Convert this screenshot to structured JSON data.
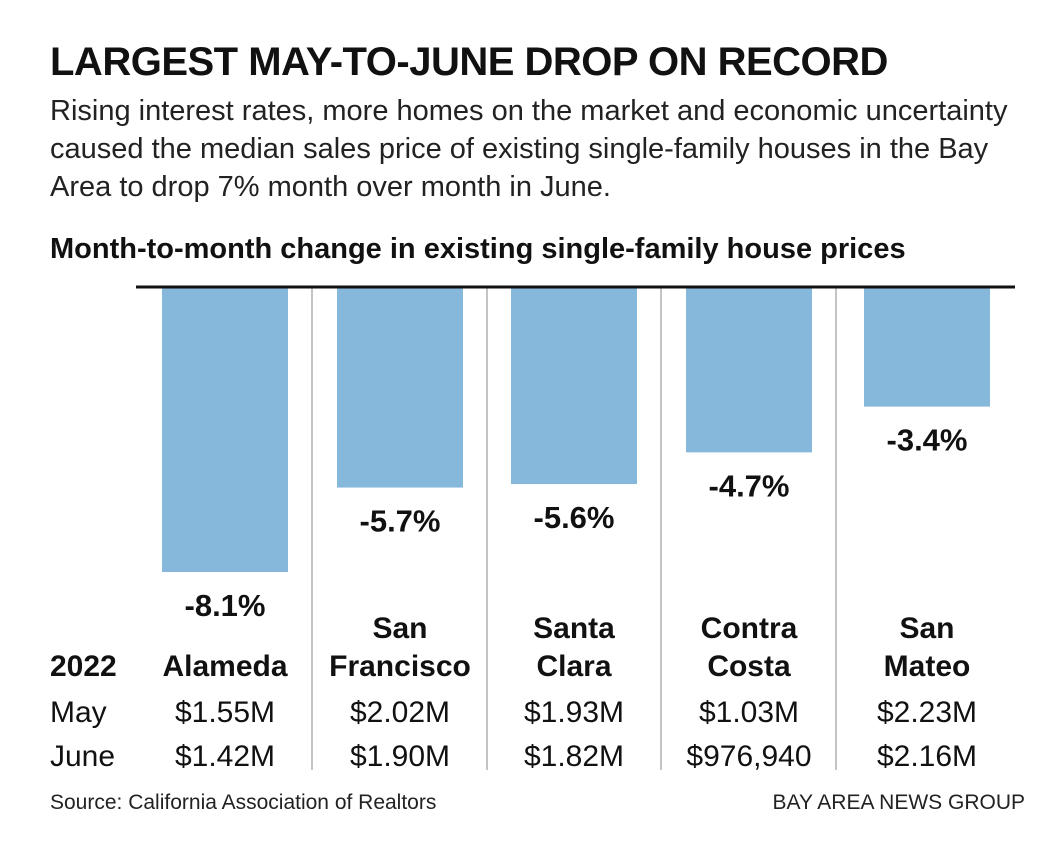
{
  "title": "LARGEST MAY-TO-JUNE DROP ON RECORD",
  "subtitle": "Rising interest rates, more homes on the market and economic uncertainty caused the median sales price of existing single-family houses in the Bay Area to drop 7% month over month in June.",
  "chart_title": "Month-to-month change in existing single-family house prices",
  "source": "Source: California Association of Realtors",
  "credit": "BAY AREA NEWS GROUP",
  "colors": {
    "bar": "#86b8dc",
    "divider": "#c4c4c4",
    "baseline": "#111111",
    "text": "#111111"
  },
  "chart_data": {
    "type": "bar",
    "title": "Month-to-month change in existing single-family house prices",
    "categories": [
      "Alameda",
      "San Francisco",
      "Santa Clara",
      "Contra Costa",
      "San Mateo"
    ],
    "category_lines": [
      [
        "Alameda"
      ],
      [
        "San",
        "Francisco"
      ],
      [
        "Santa",
        "Clara"
      ],
      [
        "Contra",
        "Costa"
      ],
      [
        "San",
        "Mateo"
      ]
    ],
    "values": [
      -8.1,
      -5.7,
      -5.6,
      -4.7,
      -3.4
    ],
    "value_labels": [
      "-8.1%",
      "-5.7%",
      "-5.6%",
      "-4.7%",
      "-3.4%"
    ],
    "ylim": [
      -8.1,
      0
    ],
    "xlabel": "",
    "ylabel": "",
    "grid": false
  },
  "table": {
    "header": "2022",
    "rows": [
      {
        "label": "May",
        "values": [
          "$1.55M",
          "$2.02M",
          "$1.93M",
          "$1.03M",
          "$2.23M"
        ]
      },
      {
        "label": "June",
        "values": [
          "$1.42M",
          "$1.90M",
          "$1.82M",
          "$976,940",
          "$2.16M"
        ]
      }
    ]
  }
}
